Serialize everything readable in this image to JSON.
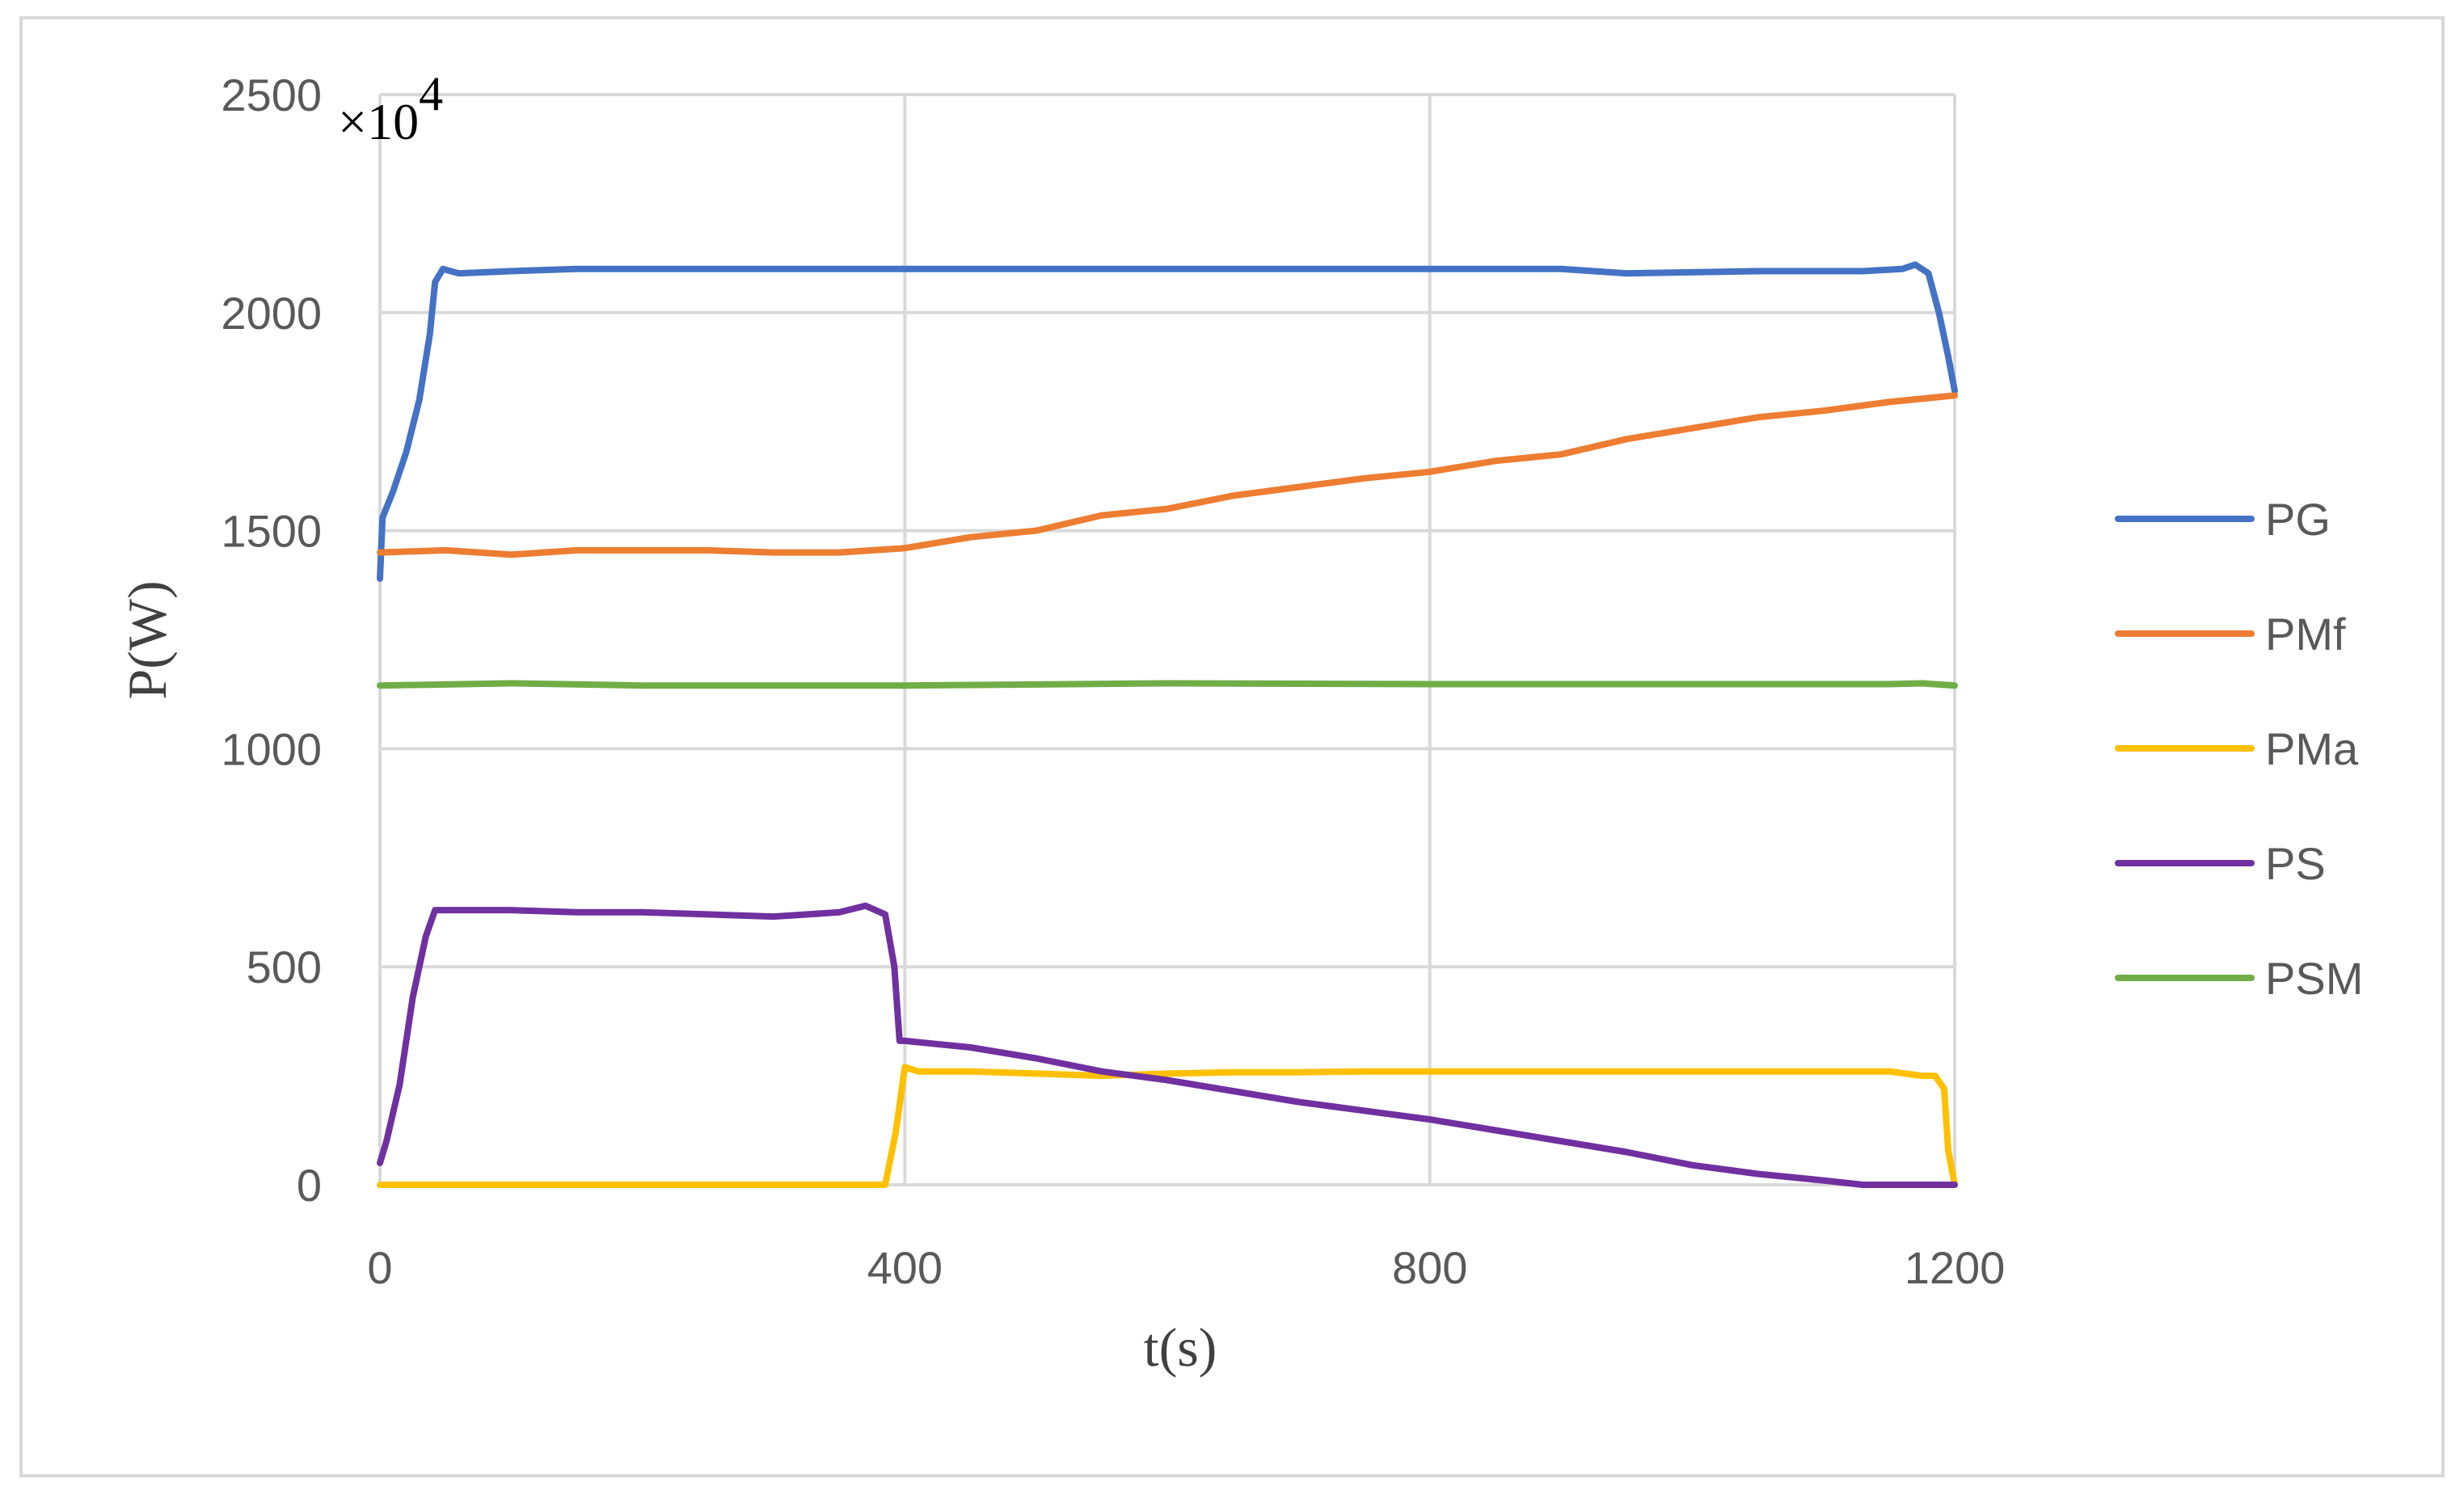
{
  "chart_data": {
    "type": "line",
    "title": "",
    "xlabel": "t(s)",
    "ylabel": "P(W)",
    "y_multiplier": {
      "base": "×10",
      "exponent": "4"
    },
    "xlim": [
      0,
      1200
    ],
    "ylim": [
      0,
      2500
    ],
    "x_ticks": [
      0,
      400,
      800,
      1200
    ],
    "y_ticks": [
      0,
      500,
      1000,
      1500,
      2000,
      2500
    ],
    "grid": true,
    "legend_position": "right",
    "series": [
      {
        "name": "PG",
        "color": "#4472c4",
        "points": [
          [
            0,
            1390
          ],
          [
            2,
            1530
          ],
          [
            10,
            1590
          ],
          [
            20,
            1680
          ],
          [
            30,
            1800
          ],
          [
            38,
            1950
          ],
          [
            42,
            2070
          ],
          [
            48,
            2100
          ],
          [
            60,
            2090
          ],
          [
            100,
            2095
          ],
          [
            150,
            2100
          ],
          [
            300,
            2100
          ],
          [
            500,
            2100
          ],
          [
            700,
            2100
          ],
          [
            900,
            2100
          ],
          [
            950,
            2090
          ],
          [
            1050,
            2095
          ],
          [
            1130,
            2095
          ],
          [
            1160,
            2100
          ],
          [
            1170,
            2110
          ],
          [
            1180,
            2090
          ],
          [
            1188,
            2000
          ],
          [
            1195,
            1900
          ],
          [
            1200,
            1820
          ]
        ]
      },
      {
        "name": "PMf",
        "color": "#ed7d31",
        "points": [
          [
            0,
            1450
          ],
          [
            50,
            1455
          ],
          [
            100,
            1445
          ],
          [
            150,
            1455
          ],
          [
            200,
            1455
          ],
          [
            250,
            1455
          ],
          [
            300,
            1450
          ],
          [
            350,
            1450
          ],
          [
            400,
            1460
          ],
          [
            450,
            1485
          ],
          [
            500,
            1500
          ],
          [
            550,
            1535
          ],
          [
            600,
            1550
          ],
          [
            650,
            1580
          ],
          [
            700,
            1600
          ],
          [
            750,
            1620
          ],
          [
            800,
            1635
          ],
          [
            850,
            1660
          ],
          [
            900,
            1675
          ],
          [
            950,
            1710
          ],
          [
            1000,
            1735
          ],
          [
            1050,
            1760
          ],
          [
            1100,
            1775
          ],
          [
            1150,
            1795
          ],
          [
            1200,
            1810
          ]
        ]
      },
      {
        "name": "PMa",
        "color": "#ffc000",
        "points": [
          [
            0,
            0
          ],
          [
            385,
            0
          ],
          [
            393,
            120
          ],
          [
            400,
            270
          ],
          [
            410,
            260
          ],
          [
            450,
            260
          ],
          [
            500,
            255
          ],
          [
            550,
            250
          ],
          [
            600,
            255
          ],
          [
            650,
            258
          ],
          [
            700,
            258
          ],
          [
            750,
            260
          ],
          [
            900,
            260
          ],
          [
            1150,
            260
          ],
          [
            1175,
            250
          ],
          [
            1185,
            250
          ],
          [
            1192,
            220
          ],
          [
            1195,
            80
          ],
          [
            1200,
            0
          ]
        ]
      },
      {
        "name": "PS",
        "color": "#7030a0",
        "points": [
          [
            0,
            50
          ],
          [
            5,
            100
          ],
          [
            15,
            230
          ],
          [
            25,
            430
          ],
          [
            35,
            570
          ],
          [
            42,
            630
          ],
          [
            100,
            630
          ],
          [
            150,
            625
          ],
          [
            200,
            625
          ],
          [
            250,
            620
          ],
          [
            300,
            615
          ],
          [
            350,
            625
          ],
          [
            370,
            640
          ],
          [
            385,
            620
          ],
          [
            392,
            500
          ],
          [
            396,
            330
          ],
          [
            400,
            330
          ],
          [
            450,
            315
          ],
          [
            500,
            290
          ],
          [
            550,
            260
          ],
          [
            600,
            240
          ],
          [
            650,
            215
          ],
          [
            700,
            190
          ],
          [
            750,
            170
          ],
          [
            800,
            150
          ],
          [
            850,
            125
          ],
          [
            900,
            100
          ],
          [
            950,
            75
          ],
          [
            1000,
            45
          ],
          [
            1050,
            25
          ],
          [
            1100,
            10
          ],
          [
            1130,
            0
          ],
          [
            1200,
            0
          ]
        ]
      },
      {
        "name": "PSM",
        "color": "#70ad47",
        "points": [
          [
            0,
            1145
          ],
          [
            100,
            1150
          ],
          [
            200,
            1145
          ],
          [
            400,
            1145
          ],
          [
            600,
            1150
          ],
          [
            800,
            1148
          ],
          [
            1000,
            1148
          ],
          [
            1150,
            1148
          ],
          [
            1175,
            1150
          ],
          [
            1200,
            1145
          ]
        ]
      }
    ]
  }
}
